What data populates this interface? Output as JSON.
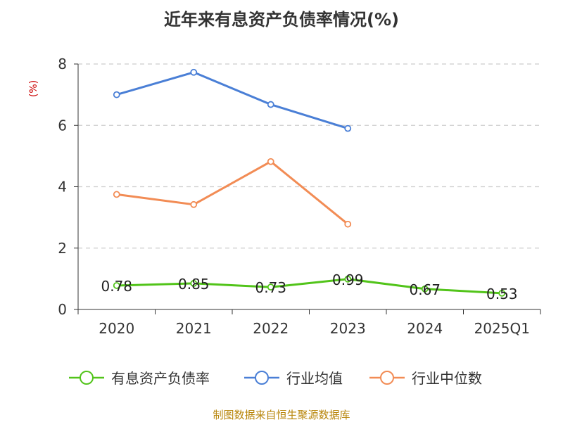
{
  "chart_data": {
    "type": "line",
    "title": "近年来有息资产负债率情况(%)",
    "ylabel": "(%)",
    "categories": [
      "2020",
      "2021",
      "2022",
      "2023",
      "2024",
      "2025Q1"
    ],
    "ylim": [
      0,
      8
    ],
    "yticks": [
      0,
      2,
      4,
      6,
      8
    ],
    "grid": true,
    "legend_position": "bottom",
    "series": [
      {
        "name": "有息资产负债率",
        "color": "#52c41a",
        "values": [
          0.78,
          0.85,
          0.73,
          0.99,
          0.67,
          0.53
        ],
        "labels": [
          "0.78",
          "0.85",
          "0.73",
          "0.99",
          "0.67",
          "0.53"
        ]
      },
      {
        "name": "行业均值",
        "color": "#4a7fd6",
        "values": [
          7.0,
          7.73,
          6.68,
          5.9,
          null,
          null
        ]
      },
      {
        "name": "行业中位数",
        "color": "#f28c55",
        "values": [
          3.75,
          3.42,
          4.82,
          2.78,
          null,
          null
        ]
      }
    ]
  },
  "source": "制图数据来自恒生聚源数据库"
}
